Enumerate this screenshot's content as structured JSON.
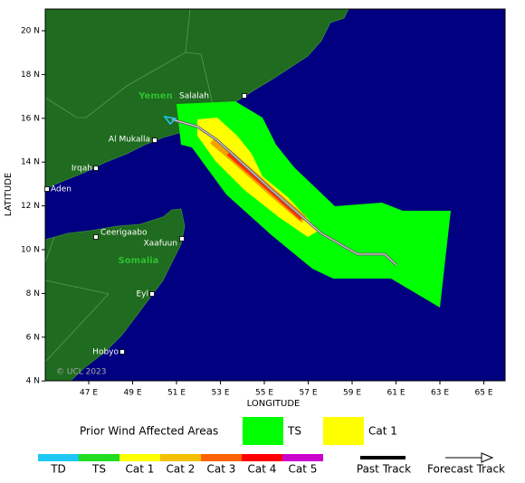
{
  "map": {
    "x_axis_title": "LONGITUDE",
    "y_axis_title": "LATITUDE",
    "lon_ticks": [
      {
        "value": 47,
        "label": "47 E"
      },
      {
        "value": 49,
        "label": "49 E"
      },
      {
        "value": 51,
        "label": "51 E"
      },
      {
        "value": 53,
        "label": "53 E"
      },
      {
        "value": 55,
        "label": "55 E"
      },
      {
        "value": 57,
        "label": "57 E"
      },
      {
        "value": 59,
        "label": "59 E"
      },
      {
        "value": 61,
        "label": "61 E"
      },
      {
        "value": 63,
        "label": "63 E"
      },
      {
        "value": 65,
        "label": "65 E"
      }
    ],
    "lat_ticks": [
      {
        "value": 4,
        "label": "4 N"
      },
      {
        "value": 6,
        "label": "6 N"
      },
      {
        "value": 8,
        "label": "8 N"
      },
      {
        "value": 10,
        "label": "10 N"
      },
      {
        "value": 12,
        "label": "12 N"
      },
      {
        "value": 14,
        "label": "14 N"
      },
      {
        "value": 16,
        "label": "16 N"
      },
      {
        "value": 18,
        "label": "18 N"
      },
      {
        "value": 20,
        "label": "20 N"
      }
    ],
    "countries": [
      "Yemen",
      "Somalia"
    ],
    "cities": [
      "Salalah",
      "Al Mukalla",
      "Irqah",
      "Aden",
      "Ceerigaabo",
      "Xaafuun",
      "Eyl",
      "Hobyo"
    ],
    "copyright": "© UCL 2023"
  },
  "legend": {
    "title": "Prior Wind Affected Areas",
    "areas": [
      {
        "label": "TS",
        "color": "#00ff00"
      },
      {
        "label": "Cat 1",
        "color": "#ffff00"
      }
    ],
    "scale": [
      {
        "label": "TD",
        "color": "#1ec8f5"
      },
      {
        "label": "TS",
        "color": "#22dd22"
      },
      {
        "label": "Cat 1",
        "color": "#ffff00"
      },
      {
        "label": "Cat 2",
        "color": "#f5c000"
      },
      {
        "label": "Cat 3",
        "color": "#ff6400"
      },
      {
        "label": "Cat 4",
        "color": "#ff0000"
      },
      {
        "label": "Cat 5",
        "color": "#cc00cc"
      }
    ],
    "tracks": [
      "Past Track",
      "Forecast Track"
    ]
  }
}
